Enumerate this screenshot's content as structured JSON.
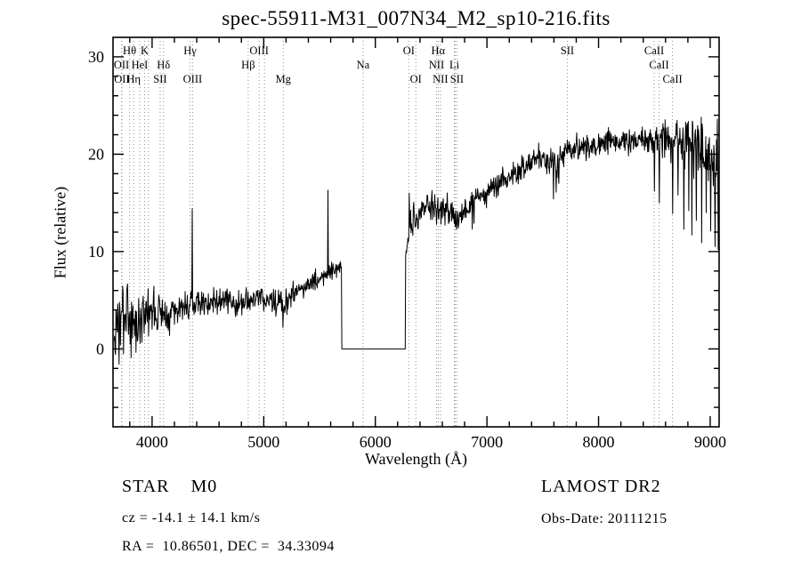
{
  "footer": {
    "class_label": "STAR    M0",
    "survey": "LAMOST DR2",
    "cz": "cz = -14.1 ± 14.1 km/s",
    "obs_date": "Obs-Date: 20111215",
    "radec": "RA =  10.86501, DEC =  34.33094"
  },
  "chart_data": {
    "type": "line",
    "title": "spec-55911-M31_007N34_M2_sp10-216.fits",
    "xlabel": "Wavelength (Å)",
    "ylabel": "Flux (relative)",
    "xlim": [
      3650,
      9080
    ],
    "ylim": [
      -8,
      32
    ],
    "xticks": [
      4000,
      5000,
      6000,
      7000,
      8000,
      9000
    ],
    "yticks": [
      0,
      10,
      20,
      30
    ],
    "xtick_minor_step": 200,
    "ytick_minor_step": 2,
    "grid": false,
    "line_color": "#000000",
    "marker_line_color": "#8f8f8f",
    "sample_start": 3660,
    "sample_end": 9080,
    "sample_step": 4,
    "noise_seed": 3,
    "masked_region": [
      5700,
      6270
    ],
    "masked_value": 0,
    "envelope": [
      [
        3660,
        2.0,
        3.2
      ],
      [
        3750,
        2.6,
        2.9
      ],
      [
        3850,
        3.0,
        2.4
      ],
      [
        3950,
        3.3,
        2.0
      ],
      [
        4050,
        3.6,
        1.7
      ],
      [
        4150,
        3.9,
        1.5
      ],
      [
        4250,
        4.2,
        1.3
      ],
      [
        4400,
        4.6,
        1.2
      ],
      [
        4550,
        4.8,
        1.1
      ],
      [
        4700,
        5.0,
        1.0
      ],
      [
        4850,
        4.8,
        1.0
      ],
      [
        5000,
        5.2,
        1.0
      ],
      [
        5100,
        5.0,
        1.1
      ],
      [
        5175,
        4.5,
        1.2
      ],
      [
        5250,
        5.6,
        1.0
      ],
      [
        5350,
        6.2,
        0.9
      ],
      [
        5450,
        6.8,
        0.9
      ],
      [
        5550,
        7.6,
        0.8
      ],
      [
        5650,
        8.3,
        0.7
      ],
      [
        5696,
        8.6,
        0.5
      ],
      [
        6270,
        10.0,
        1.2
      ],
      [
        6320,
        12.8,
        1.1
      ],
      [
        6400,
        14.0,
        1.0
      ],
      [
        6500,
        14.8,
        1.0
      ],
      [
        6563,
        14.2,
        1.2
      ],
      [
        6650,
        14.6,
        1.0
      ],
      [
        6731,
        13.2,
        1.0
      ],
      [
        6850,
        14.8,
        1.0
      ],
      [
        7000,
        16.2,
        1.0
      ],
      [
        7150,
        17.2,
        1.0
      ],
      [
        7300,
        18.4,
        1.0
      ],
      [
        7450,
        19.7,
        1.0
      ],
      [
        7600,
        19.3,
        1.4
      ],
      [
        7750,
        20.6,
        1.0
      ],
      [
        7900,
        21.0,
        1.0
      ],
      [
        8100,
        21.2,
        1.0
      ],
      [
        8300,
        21.3,
        1.0
      ],
      [
        8450,
        21.6,
        1.1
      ],
      [
        8600,
        21.2,
        1.5
      ],
      [
        8750,
        21.6,
        1.8
      ],
      [
        8900,
        20.8,
        2.2
      ],
      [
        9000,
        20.0,
        2.6
      ],
      [
        9080,
        18.5,
        3.2
      ]
    ],
    "up_spikes": [
      [
        4358,
        14.4
      ],
      [
        5577,
        16.3
      ],
      [
        6302,
        16.0
      ],
      [
        9064,
        23.6
      ]
    ],
    "down_spikes": [
      [
        5172,
        2.2
      ],
      [
        6867,
        12.3
      ],
      [
        6884,
        12.9
      ],
      [
        7594,
        15.4
      ],
      [
        7618,
        16.1
      ],
      [
        7642,
        17.0
      ],
      [
        8498,
        16.2
      ],
      [
        8542,
        15.0
      ],
      [
        8662,
        13.9
      ],
      [
        8712,
        15.8
      ],
      [
        8762,
        12.3
      ],
      [
        8806,
        14.2
      ],
      [
        8834,
        11.7
      ],
      [
        8874,
        13.2
      ],
      [
        8922,
        10.9
      ],
      [
        8962,
        14.0
      ],
      [
        9002,
        12.1
      ],
      [
        9042,
        10.5
      ],
      [
        9072,
        10.2
      ]
    ],
    "marker_lines": [
      3726,
      3729,
      3798,
      3835,
      3889,
      3933,
      3968,
      4072,
      4102,
      4340,
      4363,
      4861,
      4959,
      5007,
      5175,
      5890,
      6300,
      6363,
      6548,
      6563,
      6583,
      6708,
      6716,
      6731,
      7720,
      8498,
      8542,
      8662
    ],
    "line_markers": [
      {
        "label": "Hθ",
        "wavelength": 3798,
        "row": 1
      },
      {
        "label": "K",
        "wavelength": 3933,
        "row": 1
      },
      {
        "label": "Hγ",
        "wavelength": 4340,
        "row": 1
      },
      {
        "label": "OIII",
        "wavelength": 4959,
        "row": 1
      },
      {
        "label": "OI",
        "wavelength": 6300,
        "row": 1
      },
      {
        "label": "Hα",
        "wavelength": 6563,
        "row": 1
      },
      {
        "label": "SII",
        "wavelength": 7720,
        "row": 1
      },
      {
        "label": "CaII",
        "wavelength": 8498,
        "row": 1
      },
      {
        "label": "OII",
        "wavelength": 3726,
        "row": 2
      },
      {
        "label": "HeI",
        "wavelength": 3889,
        "row": 2
      },
      {
        "label": "Hδ",
        "wavelength": 4102,
        "row": 2
      },
      {
        "label": "Hβ",
        "wavelength": 4861,
        "row": 2
      },
      {
        "label": "Na",
        "wavelength": 5890,
        "row": 2
      },
      {
        "label": "NII",
        "wavelength": 6548,
        "row": 2
      },
      {
        "label": "Li",
        "wavelength": 6708,
        "row": 2
      },
      {
        "label": "CaII",
        "wavelength": 8542,
        "row": 2
      },
      {
        "label": "OII",
        "wavelength": 3729,
        "row": 3
      },
      {
        "label": "Hη",
        "wavelength": 3835,
        "row": 3
      },
      {
        "label": "SII",
        "wavelength": 4072,
        "row": 3
      },
      {
        "label": "OIII",
        "wavelength": 4363,
        "row": 3
      },
      {
        "label": "Mg",
        "wavelength": 5175,
        "row": 3
      },
      {
        "label": "OI",
        "wavelength": 6363,
        "row": 3
      },
      {
        "label": "NII",
        "wavelength": 6583,
        "row": 3
      },
      {
        "label": "SII",
        "wavelength": 6731,
        "row": 3
      },
      {
        "label": "CaII",
        "wavelength": 8662,
        "row": 3
      }
    ]
  }
}
